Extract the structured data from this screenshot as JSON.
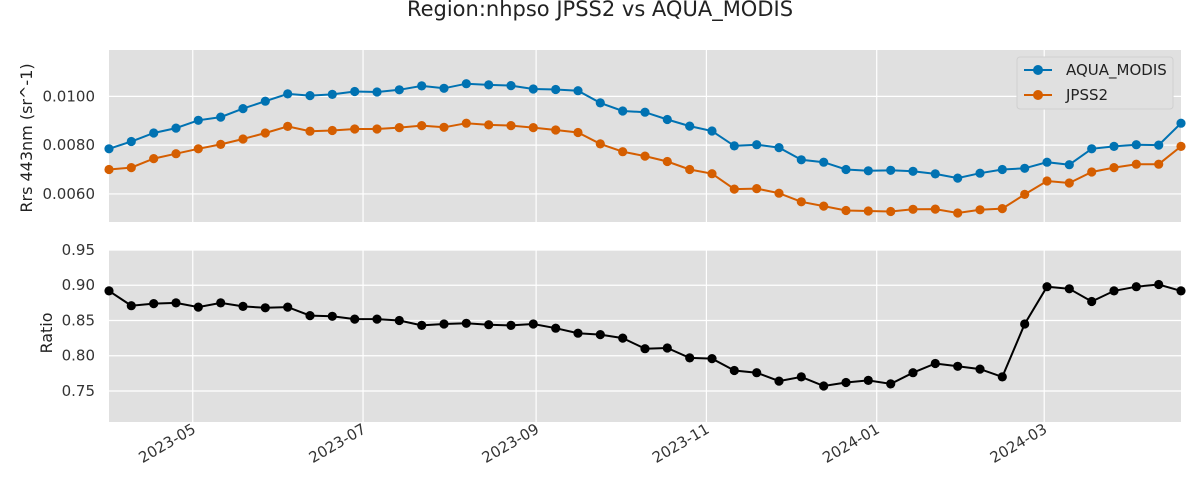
{
  "chart_data": {
    "type": "line",
    "title": "Region:nhpso JPSS2 vs AQUA_MODIS",
    "x": [
      "2023-04-01",
      "2023-04-09",
      "2023-04-17",
      "2023-04-25",
      "2023-05-03",
      "2023-05-11",
      "2023-05-19",
      "2023-05-27",
      "2023-06-04",
      "2023-06-12",
      "2023-06-20",
      "2023-06-28",
      "2023-07-06",
      "2023-07-14",
      "2023-07-22",
      "2023-07-30",
      "2023-08-07",
      "2023-08-15",
      "2023-08-23",
      "2023-08-31",
      "2023-09-08",
      "2023-09-16",
      "2023-09-24",
      "2023-10-02",
      "2023-10-10",
      "2023-10-18",
      "2023-10-26",
      "2023-11-03",
      "2023-11-11",
      "2023-11-19",
      "2023-11-27",
      "2023-12-05",
      "2023-12-13",
      "2023-12-21",
      "2023-12-29",
      "2024-01-06",
      "2024-01-14",
      "2024-01-22",
      "2024-01-30",
      "2024-02-07",
      "2024-02-15",
      "2024-02-23",
      "2024-03-02",
      "2024-03-10",
      "2024-03-18",
      "2024-03-26",
      "2024-04-03",
      "2024-04-11",
      "2024-04-19"
    ],
    "panels": [
      {
        "ylabel": "Rrs 443nm (sr^-1)",
        "yticks": [
          "0.0060",
          "0.0080",
          "0.0100"
        ],
        "ylim": [
          0.00485,
          0.0119
        ],
        "legend": "top-right",
        "series": [
          {
            "name": "AQUA_MODIS",
            "color": "#0072b2",
            "values": [
              0.00785,
              0.00815,
              0.0085,
              0.0087,
              0.00902,
              0.00915,
              0.0095,
              0.0098,
              0.0101,
              0.01003,
              0.01008,
              0.0102,
              0.01018,
              0.01027,
              0.01043,
              0.01033,
              0.01052,
              0.01047,
              0.01044,
              0.0103,
              0.01028,
              0.01023,
              0.00973,
              0.0094,
              0.00935,
              0.00905,
              0.00878,
              0.00858,
              0.00797,
              0.00802,
              0.0079,
              0.0074,
              0.0073,
              0.007,
              0.00695,
              0.00697,
              0.00693,
              0.00682,
              0.00665,
              0.00685,
              0.007,
              0.00705,
              0.0073,
              0.0072,
              0.00785,
              0.00795,
              0.00802,
              0.008,
              0.0089
            ]
          },
          {
            "name": "JPSS2",
            "color": "#d55e00",
            "values": [
              0.007,
              0.00708,
              0.00745,
              0.00765,
              0.00785,
              0.00803,
              0.00825,
              0.0085,
              0.00877,
              0.00857,
              0.0086,
              0.00866,
              0.00866,
              0.00872,
              0.0088,
              0.00873,
              0.0089,
              0.00883,
              0.0088,
              0.00872,
              0.00862,
              0.00852,
              0.00805,
              0.00773,
              0.00755,
              0.00733,
              0.007,
              0.00683,
              0.0062,
              0.00622,
              0.00603,
              0.00568,
              0.0055,
              0.00532,
              0.0053,
              0.00528,
              0.00537,
              0.00538,
              0.00522,
              0.00535,
              0.0054,
              0.00598,
              0.00653,
              0.00645,
              0.0069,
              0.00708,
              0.00722,
              0.00722,
              0.00795
            ]
          }
        ]
      },
      {
        "ylabel": "Ratio",
        "yticks": [
          "0.75",
          "0.80",
          "0.85",
          "0.90",
          "0.95"
        ],
        "ylim": [
          0.706,
          0.95
        ],
        "series": [
          {
            "color": "#000000",
            "values": [
              0.892,
              0.871,
              0.874,
              0.875,
              0.869,
              0.875,
              0.87,
              0.868,
              0.869,
              0.857,
              0.856,
              0.852,
              0.852,
              0.85,
              0.843,
              0.845,
              0.846,
              0.844,
              0.843,
              0.845,
              0.839,
              0.832,
              0.83,
              0.825,
              0.81,
              0.811,
              0.797,
              0.796,
              0.779,
              0.776,
              0.764,
              0.77,
              0.757,
              0.762,
              0.765,
              0.76,
              0.776,
              0.789,
              0.785,
              0.781,
              0.77,
              0.845,
              0.898,
              0.895,
              0.877,
              0.892,
              0.898,
              0.901,
              0.892
            ]
          }
        ]
      }
    ],
    "x_ticks": [
      "2023-05",
      "2023-07",
      "2023-09",
      "2023-11",
      "2024-01",
      "2024-03"
    ],
    "grid": true
  }
}
